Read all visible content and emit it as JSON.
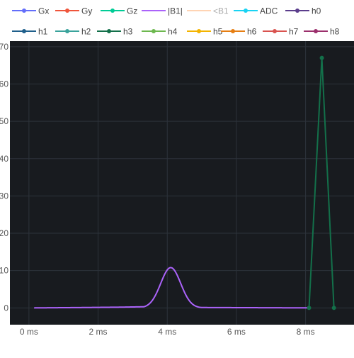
{
  "chart_data": {
    "type": "line",
    "x_unit": "ms",
    "x_ticks": [
      "0 ms",
      "2 ms",
      "4 ms",
      "6 ms",
      "8 ms"
    ],
    "x_tick_values": [
      0,
      2,
      4,
      6,
      8
    ],
    "y_ticks": [
      "0",
      "10",
      "20",
      "30",
      "40",
      "50",
      "60",
      "70"
    ],
    "y_tick_values": [
      0,
      10,
      20,
      30,
      40,
      50,
      60,
      70
    ],
    "xlim": [
      -0.55,
      9.4
    ],
    "ylim": [
      -4.5,
      71.5
    ],
    "grid": true,
    "plot_background": "#181b1f",
    "grid_color": "#2d333b",
    "legend_position": "top",
    "legend": [
      {
        "name": "Gx",
        "color": "#636efa",
        "style": "lines+markers"
      },
      {
        "name": "Gy",
        "color": "#ef553b",
        "style": "lines+markers"
      },
      {
        "name": "Gz",
        "color": "#00cc96",
        "style": "lines+markers"
      },
      {
        "name": "|B1|",
        "color": "#ab63fa",
        "style": "lines"
      },
      {
        "name": "<B1",
        "color": "#ffa15a",
        "style": "lines",
        "faded": true
      },
      {
        "name": "ADC",
        "color": "#19d3f3",
        "style": "lines+markers"
      },
      {
        "name": "h0",
        "color": "#5b3d8c",
        "style": "lines+markers"
      },
      {
        "name": "h1",
        "color": "#1f5f8b",
        "style": "lines+markers"
      },
      {
        "name": "h2",
        "color": "#3aa39c",
        "style": "lines+markers"
      },
      {
        "name": "h3",
        "color": "#13704a",
        "style": "lines+markers"
      },
      {
        "name": "h4",
        "color": "#6db84f",
        "style": "lines+markers"
      },
      {
        "name": "h5",
        "color": "#f4b400",
        "style": "lines+markers"
      },
      {
        "name": "h6",
        "color": "#e67e12",
        "style": "lines+markers"
      },
      {
        "name": "h7",
        "color": "#d9534f",
        "style": "lines+markers"
      },
      {
        "name": "h8",
        "color": "#9b2f6c",
        "style": "lines+markers"
      }
    ],
    "series": [
      {
        "name": "|B1|",
        "color": "#ab63fa",
        "mode": "lines",
        "shape": "flat-then-gaussian",
        "x_start": 0.15,
        "x_end": 8.1,
        "baseline": [
          [
            0.15,
            0.0
          ],
          [
            1.6,
            0.1
          ],
          [
            2.7,
            0.2
          ],
          [
            3.3,
            0.3
          ],
          [
            5.0,
            0.1
          ],
          [
            8.1,
            0.0
          ]
        ],
        "pulse_center": 4.1,
        "pulse_peak": 10.8,
        "pulse_sigma": 0.29
      },
      {
        "name": "h3",
        "color": "#13704a",
        "mode": "lines+markers",
        "x": [
          8.1,
          8.47,
          8.82
        ],
        "y": [
          0,
          67,
          0
        ]
      }
    ]
  }
}
